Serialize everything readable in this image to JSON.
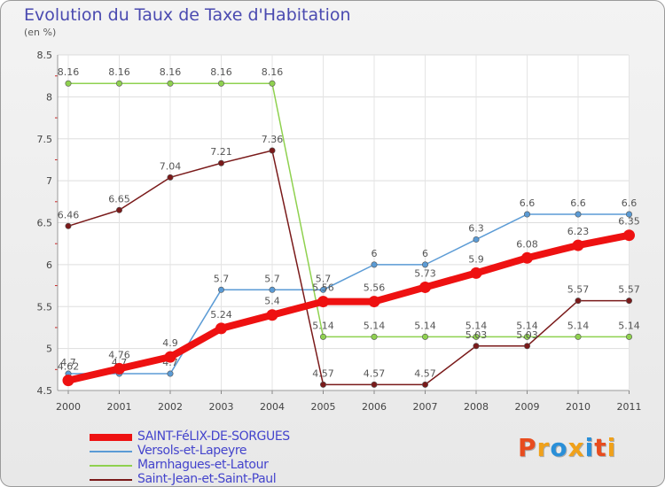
{
  "title": "Evolution du Taux de Taxe d'Habitation",
  "subtitle": "(en %)",
  "logo": {
    "text": "Proxiti",
    "colors": [
      "#e84c1e",
      "#f0a11a",
      "#2a8fd8",
      "#f0a11a",
      "#2a8fd8",
      "#e84c1e",
      "#f0a11a"
    ]
  },
  "chart_data": {
    "type": "line",
    "title": "Evolution du Taux de Taxe d'Habitation",
    "subtitle": "(en %)",
    "categories": [
      "2000",
      "2001",
      "2002",
      "2003",
      "2004",
      "2005",
      "2006",
      "2007",
      "2008",
      "2009",
      "2010",
      "2011"
    ],
    "ylim": [
      4.5,
      8.5
    ],
    "yticks": [
      "4.5",
      "5",
      "5.5",
      "6",
      "6.5",
      "7",
      "7.5",
      "8",
      "8.5"
    ],
    "grid": true,
    "legend_position": "bottom-left",
    "series": [
      {
        "name": "SAINT-FéLIX-DE-SORGUES",
        "color": "#ee1111",
        "emphasis": true,
        "values": [
          4.62,
          4.76,
          4.9,
          5.24,
          5.4,
          5.56,
          5.56,
          5.73,
          5.9,
          6.08,
          6.23,
          6.35
        ],
        "labels": [
          "4.62",
          "4.76",
          "4.9",
          "5.24",
          "5.4",
          "5.56",
          "5.56",
          "5.73",
          "5.9",
          "6.08",
          "6.23",
          "6.35"
        ]
      },
      {
        "name": "Versols-et-Lapeyre",
        "color": "#5b9bd5",
        "values": [
          4.7,
          4.7,
          4.7,
          5.7,
          5.7,
          5.7,
          6,
          6,
          6.3,
          6.6,
          6.6,
          6.6
        ],
        "labels": [
          "4.7",
          "4.7",
          "4.7",
          "5.7",
          "5.7",
          "5.7",
          "6",
          "6",
          "6.3",
          "6.6",
          "6.6",
          "6.6"
        ]
      },
      {
        "name": "Marnhagues-et-Latour",
        "color": "#8fd14f",
        "values": [
          8.16,
          8.16,
          8.16,
          8.16,
          8.16,
          5.14,
          5.14,
          5.14,
          5.14,
          5.14,
          5.14,
          5.14
        ],
        "labels": [
          "8.16",
          "8.16",
          "8.16",
          "8.16",
          "8.16",
          "5.14",
          "5.14",
          "5.14",
          "5.14",
          "5.14",
          "5.14",
          "5.14"
        ]
      },
      {
        "name": "Saint-Jean-et-Saint-Paul",
        "color": "#7a1a1a",
        "values": [
          6.46,
          6.65,
          7.04,
          7.21,
          7.36,
          4.57,
          4.57,
          4.57,
          5.03,
          5.03,
          5.57,
          5.57
        ],
        "labels": [
          "6.46",
          "6.65",
          "7.04",
          "7.21",
          "7.36",
          "4.57",
          "4.57",
          "4.57",
          "5.03",
          "5.03",
          "5.57",
          "5.57"
        ]
      }
    ]
  }
}
